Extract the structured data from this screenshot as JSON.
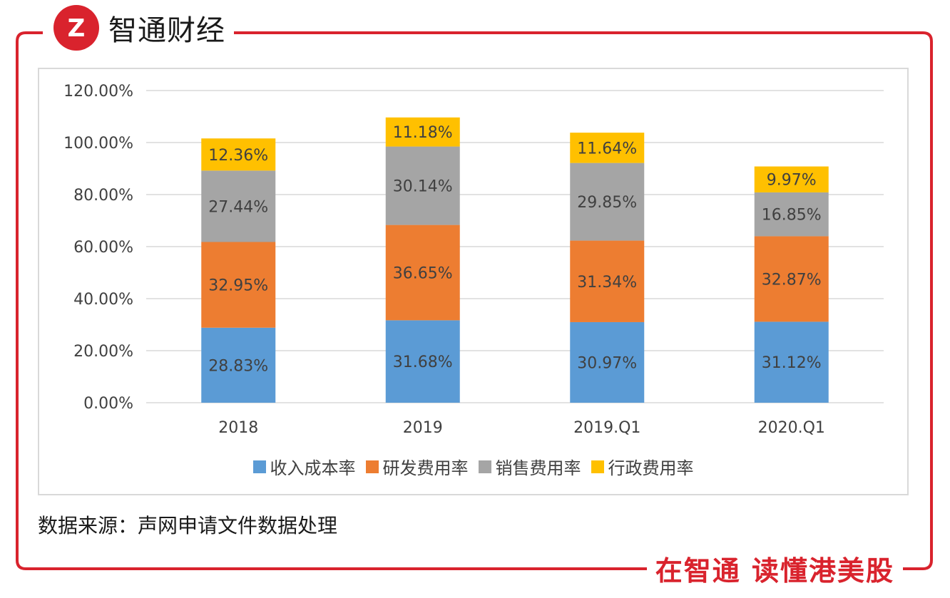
{
  "brand": {
    "name": "智通财经",
    "logo_glyph": "Z",
    "color": "#d9232d"
  },
  "source_note": "数据来源：声网申请文件数据处理",
  "slogan": "在智通 读懂港美股",
  "colors": {
    "frame": "#d9232d",
    "grid": "#d9d9d9"
  },
  "chart_data": {
    "type": "bar",
    "stacked": true,
    "categories": [
      "2018",
      "2019",
      "2019.Q1",
      "2020.Q1"
    ],
    "ylim": [
      0,
      120
    ],
    "yticks": [
      "0.00%",
      "20.00%",
      "40.00%",
      "60.00%",
      "80.00%",
      "100.00%",
      "120.00%"
    ],
    "grid": true,
    "legend_position": "bottom",
    "series": [
      {
        "name": "收入成本率",
        "color": "#5b9bd5",
        "values": [
          28.83,
          31.68,
          30.97,
          31.12
        ],
        "labels": [
          "28.83%",
          "31.68%",
          "30.97%",
          "31.12%"
        ]
      },
      {
        "name": "研发费用率",
        "color": "#ed7d31",
        "values": [
          32.95,
          36.65,
          31.34,
          32.87
        ],
        "labels": [
          "32.95%",
          "36.65%",
          "31.34%",
          "32.87%"
        ]
      },
      {
        "name": "销售费用率",
        "color": "#a5a5a5",
        "values": [
          27.44,
          30.14,
          29.85,
          16.85
        ],
        "labels": [
          "27.44%",
          "30.14%",
          "29.85%",
          "16.85%"
        ]
      },
      {
        "name": "行政费用率",
        "color": "#ffc000",
        "values": [
          12.36,
          11.18,
          11.64,
          9.97
        ],
        "labels": [
          "12.36%",
          "11.18%",
          "11.64%",
          "9.97%"
        ]
      }
    ]
  }
}
